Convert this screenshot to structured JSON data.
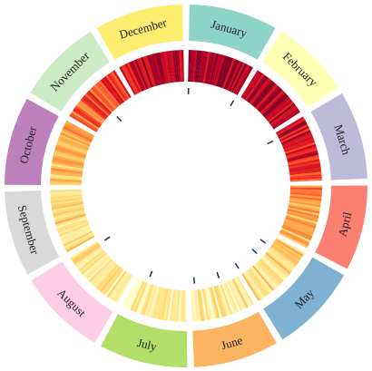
{
  "chart_data": {
    "type": "heatmap",
    "layout": "radial",
    "title": "",
    "start_angle_deg": 0,
    "months": [
      {
        "name": "January",
        "days": 31,
        "color": "#8dd3c7",
        "mean": 0.92
      },
      {
        "name": "February",
        "days": 28,
        "color": "#ffffb3",
        "mean": 0.88
      },
      {
        "name": "March",
        "days": 31,
        "color": "#bebada",
        "mean": 0.78
      },
      {
        "name": "April",
        "days": 30,
        "color": "#fb8072",
        "mean": 0.4
      },
      {
        "name": "May",
        "days": 31,
        "color": "#80b1d3",
        "mean": 0.24
      },
      {
        "name": "June",
        "days": 30,
        "color": "#fdb462",
        "mean": 0.14
      },
      {
        "name": "July",
        "days": 31,
        "color": "#b3de69",
        "mean": 0.1
      },
      {
        "name": "August",
        "days": 31,
        "color": "#fccde5",
        "mean": 0.14
      },
      {
        "name": "September",
        "days": 30,
        "color": "#d9d9d9",
        "mean": 0.24
      },
      {
        "name": "October",
        "days": 31,
        "color": "#bc80bd",
        "mean": 0.36
      },
      {
        "name": "November",
        "days": 30,
        "color": "#ccebc5",
        "mean": 0.62
      },
      {
        "name": "December",
        "days": 31,
        "color": "#ffed6f",
        "mean": 0.88
      }
    ],
    "event_day_of_year": [
      2,
      30,
      64,
      128,
      136,
      150,
      163,
      178,
      205,
      240,
      320
    ],
    "color_scale": [
      "#ffffcc",
      "#ffeda0",
      "#fed976",
      "#feb24c",
      "#fd8d3c",
      "#fc4e2a",
      "#e31a1c",
      "#bd0026",
      "#800026"
    ],
    "grid": false,
    "legend": "none"
  }
}
